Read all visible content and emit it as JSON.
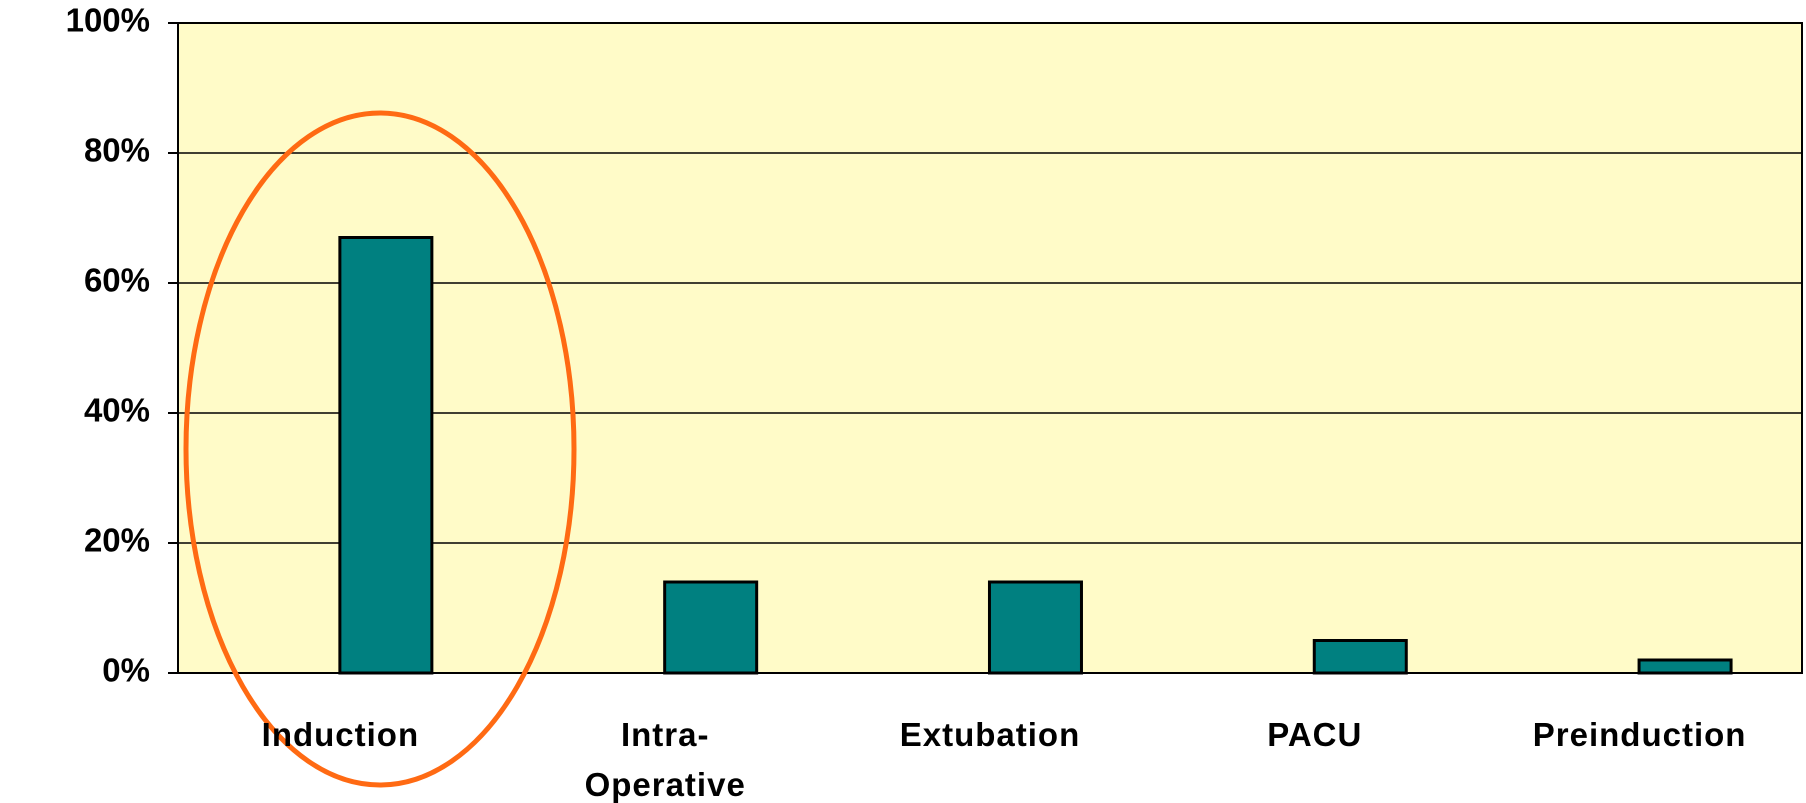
{
  "chart_data": {
    "type": "bar",
    "categories": [
      "Induction",
      "Intra-\nOperative",
      "Extubation",
      "PACU",
      "Preinduction"
    ],
    "values": [
      67,
      14,
      14,
      5,
      2
    ],
    "color": "#008080",
    "ylim": [
      0,
      100
    ],
    "yticks": [
      {
        "value": 0,
        "label": "0%"
      },
      {
        "value": 20,
        "label": "20%"
      },
      {
        "value": 40,
        "label": "40%"
      },
      {
        "value": 60,
        "label": "60%"
      },
      {
        "value": 80,
        "label": "80%"
      },
      {
        "value": 100,
        "label": "100%"
      }
    ],
    "grid": true
  }
}
